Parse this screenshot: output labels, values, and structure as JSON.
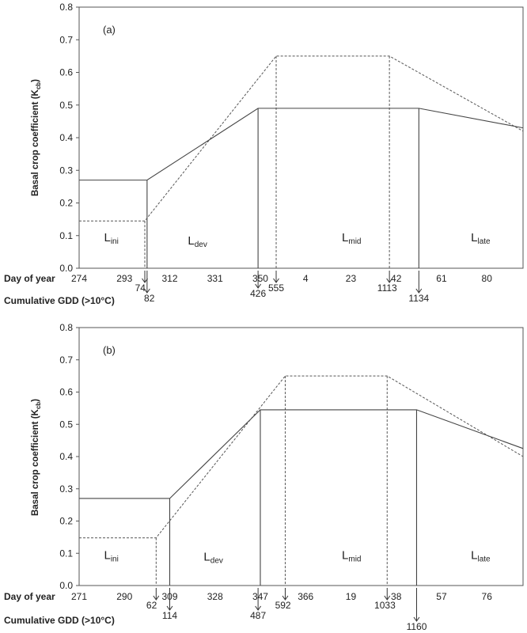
{
  "chart_data": [
    {
      "type": "line",
      "panel_label": "(a)",
      "ylabel": "Basal crop coefficient  (K",
      "ylabel_sub": "cb",
      "ylabel_close": ")",
      "ylim": [
        0,
        0.8
      ],
      "y_ticks": [
        "0.0",
        "0.1",
        "0.2",
        "0.3",
        "0.4",
        "0.5",
        "0.6",
        "0.7",
        "0.8"
      ],
      "x_row_label": "Day of year",
      "x_ticks": [
        "274",
        "293",
        "312",
        "331",
        "350",
        "4",
        "23",
        "42",
        "61",
        "80"
      ],
      "gdd_row_label": "Cumulative  GDD (>10°C)",
      "x_index_range": [
        0,
        9.8
      ],
      "series": [
        {
          "style": "solid",
          "x": [
            0,
            1.5,
            3.95,
            7.5,
            9.8
          ],
          "y": [
            0.27,
            0.27,
            0.49,
            0.49,
            0.43
          ]
        },
        {
          "style": "dashed",
          "x": [
            0,
            1.45,
            4.35,
            6.85,
            9.8
          ],
          "y": [
            0.145,
            0.145,
            0.65,
            0.65,
            0.42
          ]
        }
      ],
      "stage_lines": [
        {
          "x": 1.5,
          "y": 0.27,
          "style": "solid"
        },
        {
          "x": 1.45,
          "y": 0.145,
          "style": "dashed"
        },
        {
          "x": 3.95,
          "y": 0.49,
          "style": "solid"
        },
        {
          "x": 4.35,
          "y": 0.65,
          "style": "dashed"
        },
        {
          "x": 6.85,
          "y": 0.65,
          "style": "dashed"
        },
        {
          "x": 7.5,
          "y": 0.49,
          "style": "solid"
        }
      ],
      "stages": [
        {
          "name": "L",
          "sub": "ini",
          "x": 0.55,
          "y": 0.095
        },
        {
          "name": "L",
          "sub": "dev",
          "x": 2.4,
          "y": 0.085
        },
        {
          "name": "L",
          "sub": "mid",
          "x": 5.8,
          "y": 0.095
        },
        {
          "name": "L",
          "sub": "late",
          "x": 8.65,
          "y": 0.095
        }
      ],
      "gdd_markers": [
        {
          "label": "74",
          "x": 1.35,
          "arrow_x": 1.45,
          "len": "short"
        },
        {
          "label": "82",
          "x": 1.55,
          "arrow_x": 1.5,
          "len": "long"
        },
        {
          "label": "426",
          "x": 3.95,
          "arrow_x": 3.95,
          "len": "mid"
        },
        {
          "label": "555",
          "x": 4.35,
          "arrow_x": 4.35,
          "len": "short"
        },
        {
          "label": "1113",
          "x": 6.8,
          "arrow_x": 6.85,
          "len": "short"
        },
        {
          "label": "1134",
          "x": 7.5,
          "arrow_x": 7.5,
          "len": "long"
        }
      ]
    },
    {
      "type": "line",
      "panel_label": "(b)",
      "ylabel": "Basal crop coefficient  (K",
      "ylabel_sub": "cb",
      "ylabel_close": ")",
      "ylim": [
        0,
        0.8
      ],
      "y_ticks": [
        "0.0",
        "0.1",
        "0.2",
        "0.3",
        "0.4",
        "0.5",
        "0.6",
        "0.7",
        "0.8"
      ],
      "x_row_label": "Day of year",
      "x_ticks": [
        "271",
        "290",
        "309",
        "328",
        "347",
        "366",
        "19",
        "38",
        "57",
        "76"
      ],
      "gdd_row_label": "Cumulative  GDD (>10°C)",
      "x_index_range": [
        0,
        9.8
      ],
      "series": [
        {
          "style": "solid",
          "x": [
            0,
            2.0,
            4.0,
            7.45,
            9.8
          ],
          "y": [
            0.27,
            0.27,
            0.545,
            0.545,
            0.425
          ]
        },
        {
          "style": "dashed",
          "x": [
            0,
            1.7,
            4.55,
            6.8,
            9.8
          ],
          "y": [
            0.148,
            0.148,
            0.65,
            0.65,
            0.4
          ]
        }
      ],
      "stage_lines": [
        {
          "x": 2.0,
          "y": 0.27,
          "style": "solid"
        },
        {
          "x": 1.7,
          "y": 0.148,
          "style": "dashed"
        },
        {
          "x": 4.0,
          "y": 0.545,
          "style": "solid"
        },
        {
          "x": 4.55,
          "y": 0.65,
          "style": "dashed"
        },
        {
          "x": 6.8,
          "y": 0.65,
          "style": "dashed"
        },
        {
          "x": 7.45,
          "y": 0.545,
          "style": "solid"
        }
      ],
      "stages": [
        {
          "name": "L",
          "sub": "ini",
          "x": 0.55,
          "y": 0.095
        },
        {
          "name": "L",
          "sub": "dev",
          "x": 2.75,
          "y": 0.09
        },
        {
          "name": "L",
          "sub": "mid",
          "x": 5.8,
          "y": 0.095
        },
        {
          "name": "L",
          "sub": "late",
          "x": 8.65,
          "y": 0.095
        }
      ],
      "gdd_markers": [
        {
          "label": "62",
          "x": 1.6,
          "arrow_x": 1.7,
          "len": "short"
        },
        {
          "label": "114",
          "x": 2.0,
          "arrow_x": 2.0,
          "len": "long"
        },
        {
          "label": "487",
          "x": 3.95,
          "arrow_x": 3.95,
          "len": "long"
        },
        {
          "label": "592",
          "x": 4.5,
          "arrow_x": 4.55,
          "len": "short"
        },
        {
          "label": "1033",
          "x": 6.75,
          "arrow_x": 6.8,
          "len": "short"
        },
        {
          "label": "1160",
          "x": 7.45,
          "arrow_x": 7.45,
          "len": "xlong"
        }
      ]
    }
  ]
}
